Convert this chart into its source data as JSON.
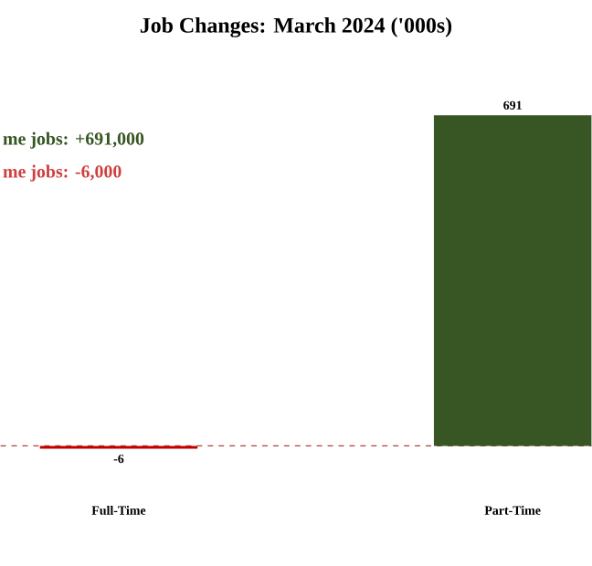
{
  "chart_data": {
    "type": "bar",
    "title": "Job Changes: March 2024 ('000s)",
    "categories": [
      "Full-Time",
      "Part-Time"
    ],
    "values": [
      -6,
      691
    ],
    "colors": [
      "#c00000",
      "#375623"
    ],
    "data_labels": true,
    "ref_lines": [
      {
        "axis": "y",
        "value": 0,
        "color": "#b04040",
        "line_style": "dashed"
      }
    ],
    "annotations": [
      "me jobs: +691,000",
      "me jobs: -6,000"
    ]
  }
}
